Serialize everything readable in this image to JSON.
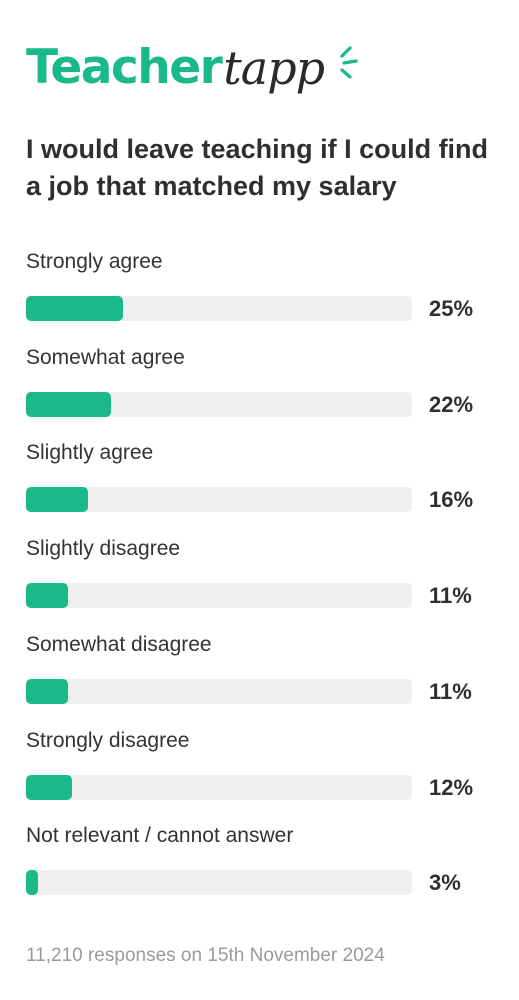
{
  "brand": {
    "name_main": "Teacher",
    "name_script": "tapp",
    "color": "#1ab98a"
  },
  "question": "I would leave teaching if I could find a job that matched my salary",
  "chart_data": {
    "type": "bar",
    "orientation": "horizontal",
    "categories": [
      "Strongly agree",
      "Somewhat agree",
      "Slightly agree",
      "Slightly disagree",
      "Somewhat disagree",
      "Strongly disagree",
      "Not relevant / cannot answer"
    ],
    "values": [
      25,
      22,
      16,
      11,
      11,
      12,
      3
    ],
    "value_labels": [
      "25%",
      "22%",
      "16%",
      "11%",
      "11%",
      "12%",
      "3%"
    ],
    "xlim": [
      0,
      100
    ],
    "bar_color": "#1ab98a",
    "track_color": "#efefef",
    "grid": false
  },
  "footer": "11,210 responses on 15th November 2024"
}
